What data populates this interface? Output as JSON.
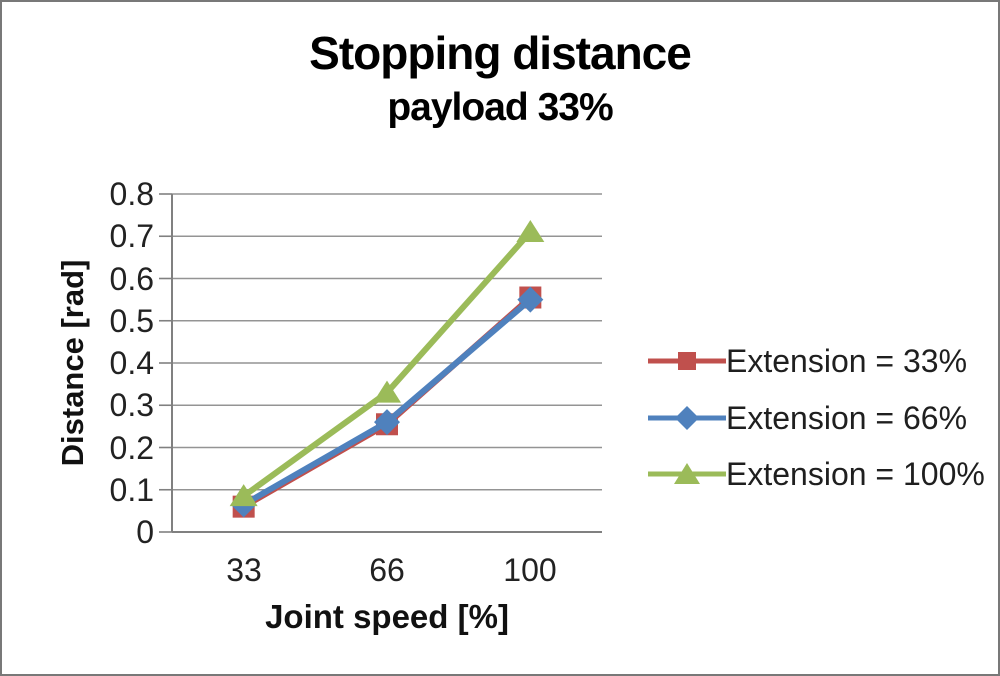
{
  "chart_data": {
    "type": "line",
    "title": "Stopping distance",
    "subtitle": "payload 33%",
    "xlabel": "Joint speed [%]",
    "ylabel": "Distance [rad]",
    "x": [
      33,
      66,
      100
    ],
    "categories": [
      "33",
      "66",
      "100"
    ],
    "series": [
      {
        "name": "Extension = 33%",
        "marker": "square",
        "color": "#C0504D",
        "values": [
          0.06,
          0.255,
          0.555
        ]
      },
      {
        "name": "Extension = 66%",
        "marker": "diamond",
        "color": "#4F81BD",
        "values": [
          0.065,
          0.26,
          0.55
        ]
      },
      {
        "name": "Extension = 100%",
        "marker": "triangle",
        "color": "#9BBB59",
        "values": [
          0.085,
          0.33,
          0.71
        ]
      }
    ],
    "ylim": [
      0,
      0.8
    ],
    "ytick_step": 0.1,
    "yticks": [
      "0",
      "0.1",
      "0.2",
      "0.3",
      "0.4",
      "0.5",
      "0.6",
      "0.7",
      "0.8"
    ],
    "grid": true,
    "legend_position": "right",
    "colors": {
      "gridline": "#949494",
      "axis": "#808080",
      "text": "#222222",
      "title": "#000000"
    }
  }
}
